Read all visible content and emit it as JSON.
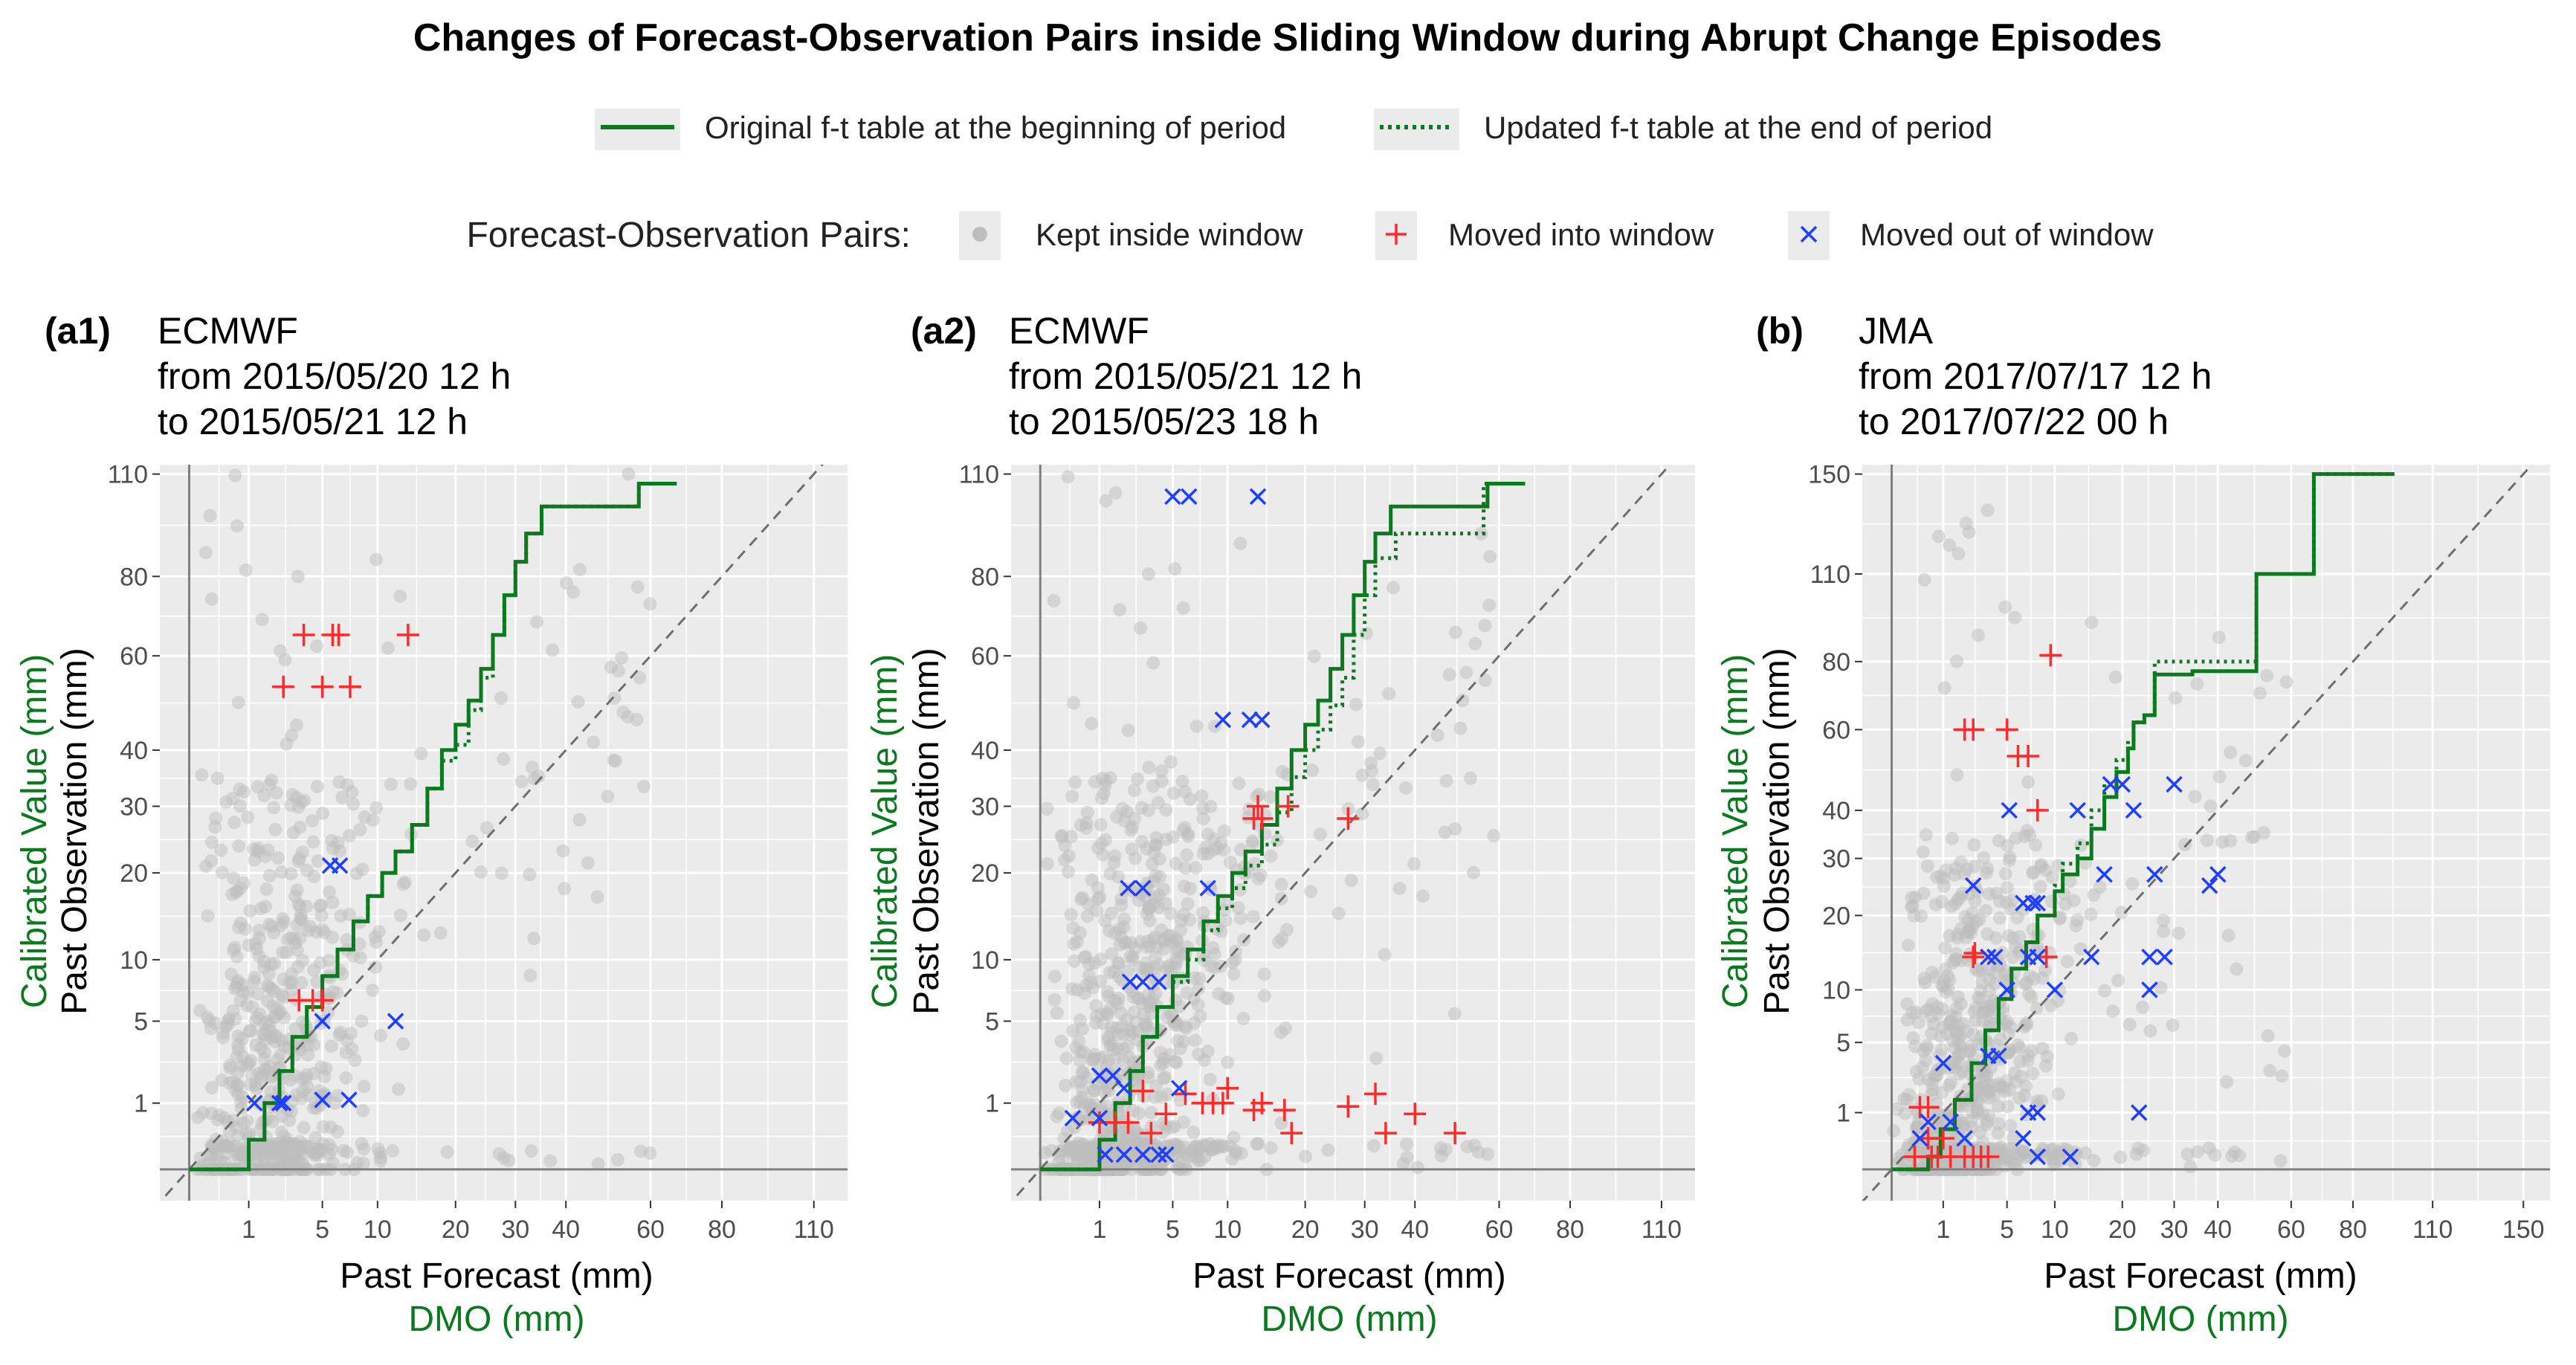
{
  "figure": {
    "title": "Changes of Forecast-Observation Pairs inside Sliding Window during Abrupt Change Episodes",
    "legend_lines": [
      {
        "label": "Original f-t table at the beginning of period",
        "style": "solid",
        "color": "#0b7a1e"
      },
      {
        "label": "Updated f-t table at the end of period",
        "style": "dotted",
        "color": "#0b7a1e"
      }
    ],
    "legend_points_title": "Forecast-Observation Pairs:",
    "legend_points": [
      {
        "label": "Kept inside window",
        "marker": "circle",
        "color": "#bdbdbd"
      },
      {
        "label": "Moved into window",
        "marker": "plus",
        "color": "#ff2a2a"
      },
      {
        "label": "Moved out of window",
        "marker": "cross",
        "color": "#1f3fff"
      }
    ],
    "colors": {
      "panel_bg": "#ebebeb",
      "grid": "#ffffff",
      "ft_line": "#0b7a1e",
      "kept": "#bdbdbd",
      "moved_in": "#ff2a2a",
      "moved_out": "#1f3fff",
      "green_label": "#0b7a1e",
      "axis_line": "#7f7f7f",
      "diag": "#6e6e6e"
    }
  },
  "chart_data": [
    {
      "type": "scatter",
      "panel_tag": "(a1)",
      "model": "ECMWF",
      "period_from": "from 2015/05/20 12 h",
      "period_to": "to 2015/05/21 12 h",
      "xlabel": "Past Forecast (mm)",
      "xlabel2": "DMO (mm)",
      "ylabel": "Past Observation (mm)",
      "ylabel2": "Calibrated Value (mm)",
      "scale": "power-0.5",
      "xlim": [
        0,
        120
      ],
      "ylim": [
        0,
        110
      ],
      "x_ticks": [
        1,
        5,
        10,
        20,
        30,
        40,
        60,
        80,
        110
      ],
      "y_ticks": [
        1,
        5,
        10,
        20,
        30,
        40,
        60,
        80,
        110
      ],
      "diagonal": true,
      "ft_original": [
        [
          0,
          0
        ],
        [
          1.0,
          0.2
        ],
        [
          1.6,
          1.0
        ],
        [
          2.3,
          2.2
        ],
        [
          3.0,
          4.0
        ],
        [
          3.9,
          6.0
        ],
        [
          5.0,
          8.5
        ],
        [
          6.2,
          11.0
        ],
        [
          7.6,
          14.0
        ],
        [
          9.0,
          17.0
        ],
        [
          10.5,
          20.0
        ],
        [
          12.0,
          23.0
        ],
        [
          14.0,
          27.0
        ],
        [
          16.0,
          33.0
        ],
        [
          18.0,
          40.0
        ],
        [
          20.0,
          45.0
        ],
        [
          22.0,
          50.0
        ],
        [
          24.0,
          57.0
        ],
        [
          26.0,
          65.0
        ],
        [
          28.0,
          75.0
        ],
        [
          30.0,
          84.0
        ],
        [
          32.0,
          92.0
        ],
        [
          35.0,
          100.0
        ],
        [
          55.0,
          100.0
        ],
        [
          57.0,
          107.0
        ],
        [
          67.0,
          107.0
        ]
      ],
      "ft_updated": [
        [
          0,
          0
        ],
        [
          1.0,
          0.2
        ],
        [
          1.6,
          1.0
        ],
        [
          2.3,
          2.2
        ],
        [
          3.0,
          4.0
        ],
        [
          3.9,
          6.0
        ],
        [
          5.0,
          8.5
        ],
        [
          6.2,
          11.0
        ],
        [
          7.6,
          14.0
        ],
        [
          9.0,
          17.0
        ],
        [
          10.5,
          20.0
        ],
        [
          12.0,
          23.0
        ],
        [
          14.0,
          27.0
        ],
        [
          16.0,
          33.0
        ],
        [
          18.0,
          38.0
        ],
        [
          20.0,
          41.0
        ],
        [
          22.0,
          48.0
        ],
        [
          24.0,
          55.0
        ],
        [
          26.0,
          65.0
        ],
        [
          28.0,
          75.0
        ],
        [
          30.0,
          84.0
        ],
        [
          32.0,
          92.0
        ],
        [
          35.0,
          100.0
        ],
        [
          55.0,
          100.0
        ],
        [
          57.0,
          107.0
        ],
        [
          67.0,
          107.0
        ]
      ],
      "moved_in": [
        [
          2.5,
          53
        ],
        [
          3.7,
          65
        ],
        [
          5.0,
          53
        ],
        [
          5.8,
          65
        ],
        [
          6.3,
          65
        ],
        [
          7.3,
          53
        ],
        [
          13.5,
          65
        ],
        [
          3.4,
          6.5
        ],
        [
          4.3,
          6.5
        ],
        [
          5.0,
          6.5
        ]
      ],
      "moved_out": [
        [
          1.2,
          1.0
        ],
        [
          2.3,
          1.0
        ],
        [
          2.5,
          1.0
        ],
        [
          5.0,
          1.1
        ],
        [
          7.2,
          1.1
        ],
        [
          5.0,
          5.0
        ],
        [
          12.0,
          5.0
        ],
        [
          5.6,
          21
        ],
        [
          6.4,
          21
        ]
      ],
      "kept_seed": 11,
      "kept_count": 650,
      "kept_xspread": 1.0
    },
    {
      "type": "scatter",
      "panel_tag": "(a2)",
      "model": "ECMWF",
      "period_from": "from 2015/05/21 12 h",
      "period_to": "to 2015/05/23 18 h",
      "xlabel": "Past Forecast (mm)",
      "xlabel2": "DMO (mm)",
      "ylabel": "Past Observation (mm)",
      "ylabel2": "Calibrated Value (mm)",
      "scale": "power-0.5",
      "xlim": [
        0,
        120
      ],
      "ylim": [
        0,
        110
      ],
      "x_ticks": [
        1,
        5,
        10,
        20,
        30,
        40,
        60,
        80,
        110
      ],
      "y_ticks": [
        1,
        5,
        10,
        20,
        30,
        40,
        60,
        80,
        110
      ],
      "diagonal": true,
      "ft_original": [
        [
          0,
          0
        ],
        [
          1.0,
          0.2
        ],
        [
          1.6,
          1.0
        ],
        [
          2.3,
          2.2
        ],
        [
          3.0,
          4.0
        ],
        [
          3.9,
          6.0
        ],
        [
          5.0,
          8.5
        ],
        [
          6.2,
          11.0
        ],
        [
          7.6,
          14.0
        ],
        [
          9.0,
          17.0
        ],
        [
          10.5,
          20.0
        ],
        [
          12.0,
          23.0
        ],
        [
          14.0,
          27.0
        ],
        [
          16.0,
          33.0
        ],
        [
          18.0,
          40.0
        ],
        [
          20.0,
          45.0
        ],
        [
          22.0,
          50.0
        ],
        [
          24.0,
          57.0
        ],
        [
          26.0,
          65.0
        ],
        [
          28.0,
          75.0
        ],
        [
          30.0,
          84.0
        ],
        [
          32.0,
          92.0
        ],
        [
          35.0,
          100.0
        ],
        [
          55.0,
          100.0
        ],
        [
          57.0,
          107.0
        ],
        [
          67.0,
          107.0
        ]
      ],
      "ft_updated": [
        [
          0,
          0
        ],
        [
          1.0,
          0.2
        ],
        [
          1.6,
          1.0
        ],
        [
          2.3,
          2.2
        ],
        [
          3.0,
          4.0
        ],
        [
          3.9,
          6.0
        ],
        [
          5.0,
          8.0
        ],
        [
          6.2,
          10.0
        ],
        [
          7.6,
          13.0
        ],
        [
          9.0,
          15.5
        ],
        [
          10.5,
          18.0
        ],
        [
          12.0,
          21.0
        ],
        [
          14.0,
          24.0
        ],
        [
          16.0,
          29.0
        ],
        [
          18.0,
          35.0
        ],
        [
          20.0,
          40.0
        ],
        [
          22.0,
          44.0
        ],
        [
          24.0,
          49.0
        ],
        [
          26.0,
          55.0
        ],
        [
          28.0,
          65.0
        ],
        [
          30.0,
          75.0
        ],
        [
          32.0,
          85.0
        ],
        [
          36.0,
          92.0
        ],
        [
          55.0,
          92.0
        ],
        [
          56.0,
          107.0
        ],
        [
          67.0,
          107.0
        ]
      ],
      "moved_in": [
        [
          13.0,
          28
        ],
        [
          14.0,
          28
        ],
        [
          13.5,
          30
        ],
        [
          17.5,
          30
        ],
        [
          27.0,
          28
        ],
        [
          1.0,
          0.5
        ],
        [
          1.6,
          0.5
        ],
        [
          2.2,
          0.5
        ],
        [
          3.0,
          1.4
        ],
        [
          3.5,
          0.3
        ],
        [
          4.5,
          0.7
        ],
        [
          6.0,
          1.3
        ],
        [
          7.5,
          1.0
        ],
        [
          8.5,
          1.0
        ],
        [
          9.5,
          1.0
        ],
        [
          10.0,
          1.5
        ],
        [
          13.0,
          0.8
        ],
        [
          14.0,
          1.0
        ],
        [
          17.0,
          0.8
        ],
        [
          18.0,
          0.3
        ],
        [
          27.0,
          0.9
        ],
        [
          32.0,
          1.3
        ],
        [
          34.0,
          0.3
        ],
        [
          40.0,
          0.7
        ],
        [
          49.0,
          0.3
        ]
      ],
      "moved_out": [
        [
          5.0,
          103
        ],
        [
          6.3,
          103
        ],
        [
          13.5,
          103
        ],
        [
          9.5,
          46
        ],
        [
          12.5,
          46
        ],
        [
          14.0,
          46
        ],
        [
          2.2,
          18
        ],
        [
          3.0,
          18
        ],
        [
          8.0,
          18
        ],
        [
          2.3,
          8
        ],
        [
          3.0,
          8
        ],
        [
          4.0,
          8
        ],
        [
          1.0,
          2.0
        ],
        [
          1.5,
          2.0
        ],
        [
          2.0,
          1.5
        ],
        [
          5.5,
          1.5
        ],
        [
          0.3,
          0.6
        ],
        [
          1.0,
          0.6
        ],
        [
          1.2,
          0.05
        ],
        [
          2.0,
          0.05
        ],
        [
          3.0,
          0.05
        ],
        [
          4.0,
          0.05
        ],
        [
          4.5,
          0.05
        ]
      ],
      "kept_seed": 23,
      "kept_count": 900,
      "kept_xspread": 1.2
    },
    {
      "type": "scatter",
      "panel_tag": "(b)",
      "model": "JMA",
      "period_from": "from 2017/07/17 12 h",
      "period_to": "to 2017/07/22 00 h",
      "xlabel": "Past Forecast (mm)",
      "xlabel2": "DMO (mm)",
      "ylabel": "Past Observation (mm)",
      "ylabel2": "Calibrated Value (mm)",
      "scale": "power-0.5",
      "xlim": [
        0,
        160
      ],
      "ylim": [
        0,
        150
      ],
      "x_ticks": [
        1,
        5,
        10,
        20,
        30,
        40,
        60,
        80,
        110,
        150
      ],
      "y_ticks": [
        1,
        5,
        10,
        20,
        30,
        40,
        60,
        80,
        110,
        150
      ],
      "diagonal": true,
      "ft_original": [
        [
          0,
          0
        ],
        [
          0.5,
          0.05
        ],
        [
          0.9,
          0.5
        ],
        [
          1.5,
          1.5
        ],
        [
          2.4,
          3.5
        ],
        [
          3.3,
          6.0
        ],
        [
          4.3,
          9.0
        ],
        [
          5.4,
          12.5
        ],
        [
          6.8,
          16.0
        ],
        [
          8.0,
          20.0
        ],
        [
          10.0,
          24.0
        ],
        [
          11.0,
          27.0
        ],
        [
          13.0,
          30.0
        ],
        [
          15.0,
          36.0
        ],
        [
          17.0,
          43.0
        ],
        [
          19.0,
          49.0
        ],
        [
          21.0,
          55.0
        ],
        [
          22.0,
          62.0
        ],
        [
          24.0,
          64.0
        ],
        [
          26.0,
          76.0
        ],
        [
          32.0,
          76.0
        ],
        [
          34.0,
          77.0
        ],
        [
          49.0,
          77.0
        ],
        [
          50.0,
          110.0
        ],
        [
          65.0,
          110.0
        ],
        [
          67.0,
          150.0
        ],
        [
          95.0,
          150.0
        ]
      ],
      "ft_updated": [
        [
          0,
          0
        ],
        [
          0.5,
          0.05
        ],
        [
          0.9,
          0.5
        ],
        [
          1.5,
          1.5
        ],
        [
          2.4,
          3.5
        ],
        [
          3.3,
          6.0
        ],
        [
          4.3,
          9.0
        ],
        [
          5.4,
          12.5
        ],
        [
          6.8,
          16.0
        ],
        [
          8.0,
          20.0
        ],
        [
          10.0,
          25.0
        ],
        [
          11.0,
          29.0
        ],
        [
          13.0,
          33.0
        ],
        [
          15.0,
          40.0
        ],
        [
          17.0,
          46.0
        ],
        [
          19.0,
          52.0
        ],
        [
          21.0,
          57.0
        ],
        [
          22.0,
          62.0
        ],
        [
          24.0,
          64.0
        ],
        [
          26.0,
          80.0
        ],
        [
          32.0,
          80.0
        ],
        [
          34.0,
          80.0
        ],
        [
          49.0,
          80.0
        ],
        [
          50.0,
          110.0
        ],
        [
          65.0,
          110.0
        ],
        [
          67.0,
          150.0
        ],
        [
          95.0,
          150.0
        ]
      ],
      "moved_in": [
        [
          2.0,
          60
        ],
        [
          2.5,
          60
        ],
        [
          5.0,
          60
        ],
        [
          6.0,
          53
        ],
        [
          7.0,
          53
        ],
        [
          9.5,
          82
        ],
        [
          8.0,
          40
        ],
        [
          2.5,
          14
        ],
        [
          2.6,
          14.5
        ],
        [
          9.0,
          14
        ],
        [
          0.3,
          1.2
        ],
        [
          0.5,
          1.2
        ],
        [
          0.2,
          0.05
        ],
        [
          0.6,
          0.05
        ],
        [
          0.8,
          0.05
        ],
        [
          1.3,
          0.05
        ],
        [
          2.0,
          0.05
        ],
        [
          2.5,
          0.05
        ],
        [
          3.0,
          0.05
        ],
        [
          3.5,
          0.05
        ],
        [
          0.5,
          0.3
        ],
        [
          1.0,
          0.3
        ]
      ],
      "moved_out": [
        [
          2.5,
          25
        ],
        [
          5.2,
          40
        ],
        [
          6.5,
          22
        ],
        [
          7.5,
          22
        ],
        [
          8.0,
          22
        ],
        [
          3.5,
          14
        ],
        [
          4.0,
          14
        ],
        [
          7.0,
          14
        ],
        [
          8.0,
          14
        ],
        [
          10.0,
          10
        ],
        [
          13.0,
          40
        ],
        [
          15.0,
          14
        ],
        [
          17.0,
          27
        ],
        [
          18.0,
          46
        ],
        [
          20.0,
          46
        ],
        [
          22.0,
          40
        ],
        [
          26.0,
          27
        ],
        [
          25.0,
          14
        ],
        [
          25.0,
          10
        ],
        [
          28.0,
          14
        ],
        [
          30.0,
          46
        ],
        [
          38.0,
          25
        ],
        [
          40.0,
          27
        ],
        [
          23.0,
          1.0
        ],
        [
          0.5,
          0.7
        ],
        [
          1.3,
          0.7
        ],
        [
          2.0,
          0.3
        ],
        [
          1.0,
          3.5
        ],
        [
          3.5,
          4.0
        ],
        [
          4.3,
          4.0
        ],
        [
          5.0,
          10
        ],
        [
          7.0,
          1.0
        ],
        [
          8.0,
          1.0
        ],
        [
          6.5,
          0.3
        ],
        [
          8.0,
          0.05
        ],
        [
          12.0,
          0.05
        ],
        [
          0.3,
          0.3
        ]
      ],
      "kept_seed": 37,
      "kept_count": 750,
      "kept_xspread": 1.1
    }
  ]
}
